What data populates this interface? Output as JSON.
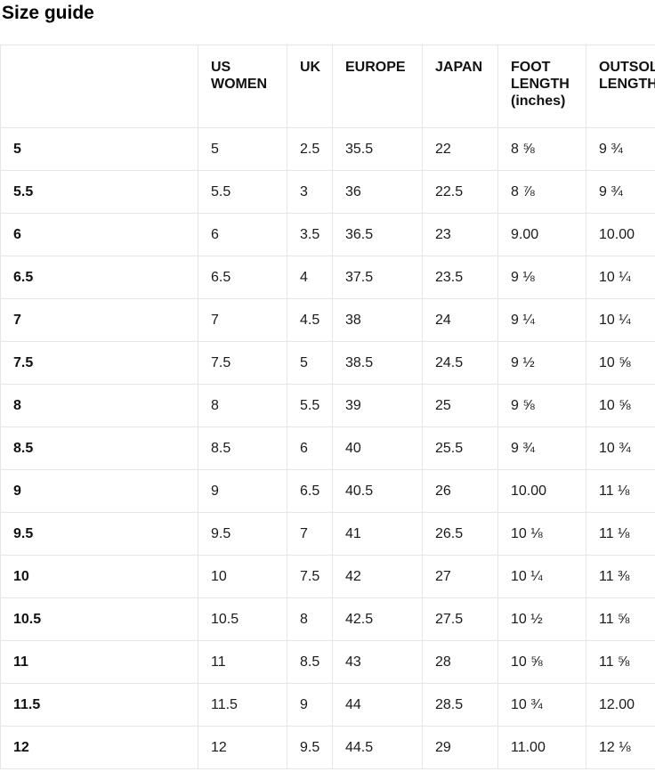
{
  "page": {
    "title": "Size guide"
  },
  "colors": {
    "background": "#ffffff",
    "table_border": "#e6e6e6",
    "text": "#111111"
  },
  "table": {
    "headers": [
      "",
      "US WOMEN",
      "UK",
      "EUROPE",
      "JAPAN",
      "FOOT LENGTH (inches)",
      "OUTSOLE LENGTH (inches)"
    ],
    "rows": [
      {
        "size": "5",
        "cells": [
          "5",
          "2.5",
          "35.5",
          "22",
          "8 ⅝",
          "9 ¾"
        ]
      },
      {
        "size": "5.5",
        "cells": [
          "5.5",
          "3",
          "36",
          "22.5",
          "8 ⅞",
          "9 ¾"
        ]
      },
      {
        "size": "6",
        "cells": [
          "6",
          "3.5",
          "36.5",
          "23",
          "9.00",
          "10.00"
        ]
      },
      {
        "size": "6.5",
        "cells": [
          "6.5",
          "4",
          "37.5",
          "23.5",
          "9 ⅛",
          "10 ¼"
        ]
      },
      {
        "size": "7",
        "cells": [
          "7",
          "4.5",
          "38",
          "24",
          "9 ¼",
          "10 ¼"
        ]
      },
      {
        "size": "7.5",
        "cells": [
          "7.5",
          "5",
          "38.5",
          "24.5",
          "9 ½",
          "10 ⅝"
        ]
      },
      {
        "size": "8",
        "cells": [
          "8",
          "5.5",
          "39",
          "25",
          "9 ⅝",
          "10 ⅝"
        ]
      },
      {
        "size": "8.5",
        "cells": [
          "8.5",
          "6",
          "40",
          "25.5",
          "9 ¾",
          "10 ¾"
        ]
      },
      {
        "size": "9",
        "cells": [
          "9",
          "6.5",
          "40.5",
          "26",
          "10.00",
          "11 ⅛"
        ]
      },
      {
        "size": "9.5",
        "cells": [
          "9.5",
          "7",
          "41",
          "26.5",
          "10 ⅛",
          "11 ⅛"
        ]
      },
      {
        "size": "10",
        "cells": [
          "10",
          "7.5",
          "42",
          "27",
          "10 ¼",
          "11 ⅜"
        ]
      },
      {
        "size": "10.5",
        "cells": [
          "10.5",
          "8",
          "42.5",
          "27.5",
          "10 ½",
          "11 ⅝"
        ]
      },
      {
        "size": "11",
        "cells": [
          "11",
          "8.5",
          "43",
          "28",
          "10 ⅝",
          "11 ⅝"
        ]
      },
      {
        "size": "11.5",
        "cells": [
          "11.5",
          "9",
          "44",
          "28.5",
          "10 ¾",
          "12.00"
        ]
      },
      {
        "size": "12",
        "cells": [
          "12",
          "9.5",
          "44.5",
          "29",
          "11.00",
          "12 ⅛"
        ]
      }
    ]
  }
}
